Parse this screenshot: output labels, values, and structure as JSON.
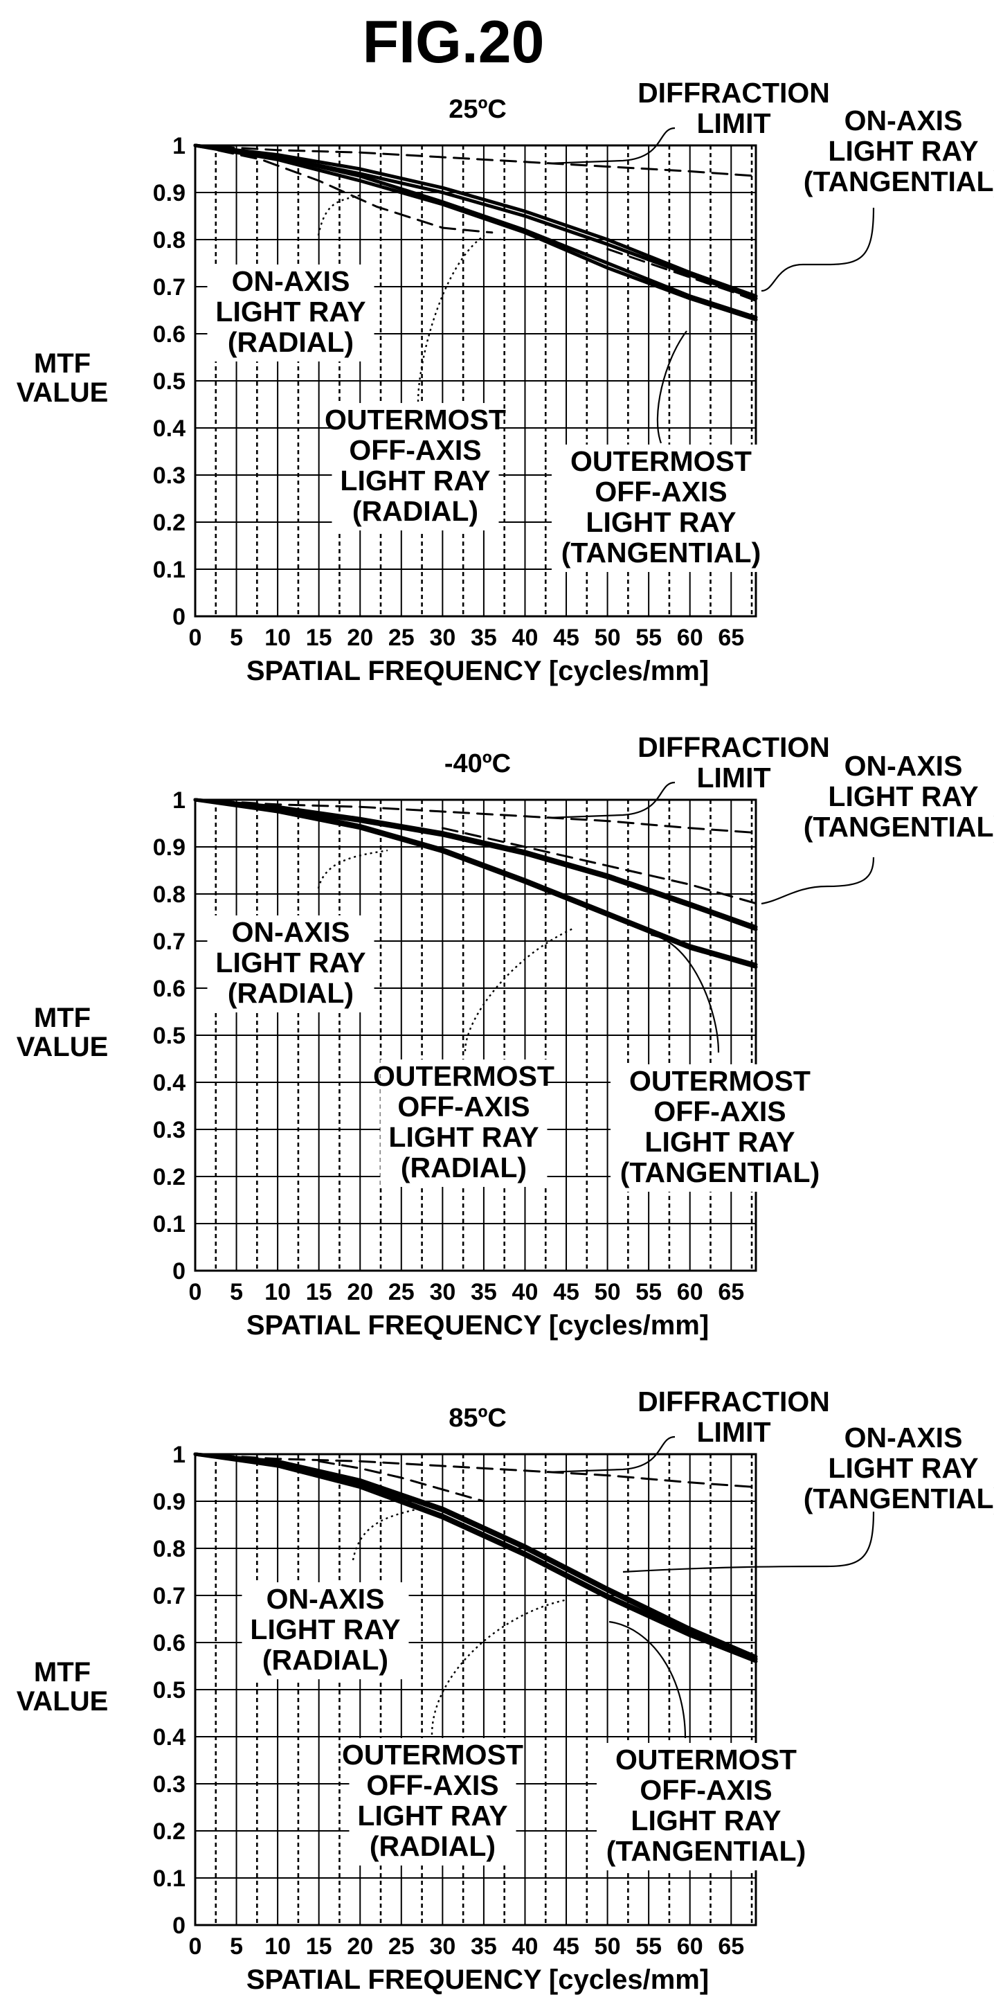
{
  "figure_title": "FIG.20",
  "chart_data": [
    {
      "type": "line",
      "title": "25ºC",
      "xlabel": "SPATIAL FREQUENCY [cycles/mm]",
      "ylabel": [
        "MTF",
        "VALUE"
      ],
      "xlim": [
        0,
        68
      ],
      "ylim": [
        0,
        1
      ],
      "x_ticks": [
        "0",
        "5",
        "10",
        "15",
        "20",
        "25",
        "30",
        "35",
        "40",
        "45",
        "50",
        "55",
        "60",
        "65"
      ],
      "y_ticks": [
        "0",
        "0.1",
        "0.2",
        "0.3",
        "0.4",
        "0.5",
        "0.6",
        "0.7",
        "0.8",
        "0.9",
        "1"
      ],
      "grid": true,
      "series": [
        {
          "name": "DIFFRACTION LIMIT",
          "style": "dashed",
          "x": [
            0,
            10,
            20,
            30,
            40,
            50,
            60,
            68
          ],
          "y": [
            1.0,
            0.99,
            0.985,
            0.975,
            0.965,
            0.955,
            0.945,
            0.935
          ]
        },
        {
          "name": "ON-AXIS LIGHT RAY (TANGENTIAL)",
          "style": "solid",
          "x": [
            0,
            10,
            20,
            30,
            40,
            50,
            60,
            68
          ],
          "y": [
            1.0,
            0.98,
            0.95,
            0.91,
            0.86,
            0.8,
            0.73,
            0.68
          ]
        },
        {
          "name": "ON-AXIS LIGHT RAY (RADIAL)",
          "style": "solid",
          "x": [
            0,
            10,
            20,
            30,
            40,
            50,
            60,
            68
          ],
          "y": [
            1.0,
            0.975,
            0.94,
            0.9,
            0.85,
            0.79,
            0.725,
            0.675
          ]
        },
        {
          "name": "OUTERMOST OFF-AXIS LIGHT RAY (TANGENTIAL)",
          "style": "solid",
          "x": [
            0,
            10,
            20,
            30,
            40,
            50,
            60,
            68
          ],
          "y": [
            1.0,
            0.975,
            0.935,
            0.88,
            0.82,
            0.75,
            0.68,
            0.635
          ]
        },
        {
          "name": "OUTERMOST OFF-AXIS LIGHT RAY (RADIAL)",
          "style": "solid",
          "x": [
            0,
            10,
            20,
            30,
            40,
            50,
            60,
            68
          ],
          "y": [
            1.0,
            0.97,
            0.925,
            0.875,
            0.815,
            0.74,
            0.675,
            0.63
          ]
        },
        {
          "name": "",
          "style": "dashed",
          "x": [
            0,
            8,
            15,
            22,
            30,
            36
          ],
          "y": [
            1.0,
            0.97,
            0.925,
            0.87,
            0.825,
            0.815
          ]
        },
        {
          "name": "",
          "style": "dashed",
          "x": [
            50,
            55,
            60,
            65,
            68
          ],
          "y": [
            0.78,
            0.75,
            0.72,
            0.69,
            0.67
          ]
        }
      ],
      "annotations": [
        {
          "lines": [
            "DIFFRACTION",
            "LIMIT"
          ]
        },
        {
          "lines": [
            "ON-AXIS",
            "LIGHT RAY",
            "(TANGENTIAL)"
          ]
        },
        {
          "lines": [
            "ON-AXIS",
            "LIGHT RAY",
            "(RADIAL)"
          ]
        },
        {
          "lines": [
            "OUTERMOST",
            "OFF-AXIS",
            "LIGHT RAY",
            "(RADIAL)"
          ]
        },
        {
          "lines": [
            "OUTERMOST",
            "OFF-AXIS",
            "LIGHT RAY",
            "(TANGENTIAL)"
          ]
        }
      ]
    },
    {
      "type": "line",
      "title": "-40ºC",
      "xlabel": "SPATIAL FREQUENCY [cycles/mm]",
      "ylabel": [
        "MTF",
        "VALUE"
      ],
      "xlim": [
        0,
        68
      ],
      "ylim": [
        0,
        1
      ],
      "x_ticks": [
        "0",
        "5",
        "10",
        "15",
        "20",
        "25",
        "30",
        "35",
        "40",
        "45",
        "50",
        "55",
        "60",
        "65"
      ],
      "y_ticks": [
        "0",
        "0.1",
        "0.2",
        "0.3",
        "0.4",
        "0.5",
        "0.6",
        "0.7",
        "0.8",
        "0.9",
        "1"
      ],
      "grid": true,
      "series": [
        {
          "name": "DIFFRACTION LIMIT",
          "style": "dashed",
          "x": [
            0,
            10,
            20,
            30,
            40,
            50,
            60,
            68
          ],
          "y": [
            1.0,
            0.99,
            0.985,
            0.975,
            0.965,
            0.955,
            0.94,
            0.93
          ]
        },
        {
          "name": "ON-AXIS LIGHT RAY (TANGENTIAL)",
          "style": "solid",
          "x": [
            0,
            10,
            20,
            30,
            40,
            50,
            60,
            68
          ],
          "y": [
            1.0,
            0.985,
            0.96,
            0.93,
            0.89,
            0.84,
            0.78,
            0.73
          ]
        },
        {
          "name": "ON-AXIS LIGHT RAY (RADIAL)",
          "style": "solid",
          "x": [
            0,
            10,
            20,
            30,
            40,
            50,
            60,
            68
          ],
          "y": [
            1.0,
            0.98,
            0.955,
            0.925,
            0.885,
            0.835,
            0.775,
            0.725
          ]
        },
        {
          "name": "OUTERMOST OFF-AXIS LIGHT RAY (TANGENTIAL)",
          "style": "solid",
          "x": [
            0,
            10,
            20,
            30,
            40,
            50,
            60,
            68
          ],
          "y": [
            1.0,
            0.98,
            0.945,
            0.895,
            0.83,
            0.76,
            0.69,
            0.65
          ]
        },
        {
          "name": "OUTERMOST OFF-AXIS LIGHT RAY (RADIAL)",
          "style": "solid",
          "x": [
            0,
            10,
            20,
            30,
            40,
            50,
            60,
            68
          ],
          "y": [
            1.0,
            0.975,
            0.94,
            0.89,
            0.825,
            0.755,
            0.685,
            0.645
          ]
        },
        {
          "name": "",
          "style": "dashed",
          "x": [
            30,
            40,
            50,
            60,
            68
          ],
          "y": [
            0.94,
            0.9,
            0.86,
            0.82,
            0.78
          ]
        }
      ],
      "annotations": [
        {
          "lines": [
            "DIFFRACTION",
            "LIMIT"
          ]
        },
        {
          "lines": [
            "ON-AXIS",
            "LIGHT RAY",
            "(TANGENTIAL)"
          ]
        },
        {
          "lines": [
            "ON-AXIS",
            "LIGHT RAY",
            "(RADIAL)"
          ]
        },
        {
          "lines": [
            "OUTERMOST",
            "OFF-AXIS",
            "LIGHT RAY",
            "(RADIAL)"
          ]
        },
        {
          "lines": [
            "OUTERMOST",
            "OFF-AXIS",
            "LIGHT RAY",
            "(TANGENTIAL)"
          ]
        }
      ]
    },
    {
      "type": "line",
      "title": "85ºC",
      "xlabel": "SPATIAL FREQUENCY [cycles/mm]",
      "ylabel": [
        "MTF",
        "VALUE"
      ],
      "xlim": [
        0,
        68
      ],
      "ylim": [
        0,
        1
      ],
      "x_ticks": [
        "0",
        "5",
        "10",
        "15",
        "20",
        "25",
        "30",
        "35",
        "40",
        "45",
        "50",
        "55",
        "60",
        "65"
      ],
      "y_ticks": [
        "0",
        "0.1",
        "0.2",
        "0.3",
        "0.4",
        "0.5",
        "0.6",
        "0.7",
        "0.8",
        "0.9",
        "1"
      ],
      "grid": true,
      "series": [
        {
          "name": "DIFFRACTION LIMIT",
          "style": "dashed",
          "x": [
            0,
            10,
            20,
            30,
            40,
            50,
            60,
            68
          ],
          "y": [
            1.0,
            0.99,
            0.985,
            0.975,
            0.965,
            0.955,
            0.94,
            0.93
          ]
        },
        {
          "name": "ON-AXIS LIGHT RAY (TANGENTIAL)",
          "style": "solid",
          "x": [
            0,
            10,
            20,
            30,
            40,
            50,
            60,
            68
          ],
          "y": [
            1.0,
            0.98,
            0.935,
            0.87,
            0.79,
            0.7,
            0.62,
            0.565
          ]
        },
        {
          "name": "ON-AXIS LIGHT RAY (RADIAL)",
          "style": "solid",
          "x": [
            0,
            10,
            20,
            30,
            40,
            50,
            60,
            68
          ],
          "y": [
            1.0,
            0.975,
            0.93,
            0.865,
            0.785,
            0.695,
            0.615,
            0.56
          ]
        },
        {
          "name": "OUTERMOST OFF-AXIS LIGHT RAY (TANGENTIAL)",
          "style": "solid",
          "x": [
            0,
            10,
            20,
            30,
            40,
            50,
            60,
            68
          ],
          "y": [
            1.0,
            0.985,
            0.945,
            0.885,
            0.805,
            0.715,
            0.63,
            0.57
          ]
        },
        {
          "name": "OUTERMOST OFF-AXIS LIGHT RAY (RADIAL)",
          "style": "solid",
          "x": [
            0,
            10,
            20,
            30,
            40,
            50,
            60,
            68
          ],
          "y": [
            1.0,
            0.98,
            0.94,
            0.88,
            0.8,
            0.71,
            0.625,
            0.565
          ]
        },
        {
          "name": "",
          "style": "dashed",
          "x": [
            15,
            20,
            25,
            30,
            35
          ],
          "y": [
            0.985,
            0.97,
            0.95,
            0.925,
            0.9
          ]
        }
      ],
      "annotations": [
        {
          "lines": [
            "DIFFRACTION",
            "LIMIT"
          ]
        },
        {
          "lines": [
            "ON-AXIS",
            "LIGHT RAY",
            "(TANGENTIAL)"
          ]
        },
        {
          "lines": [
            "ON-AXIS",
            "LIGHT RAY",
            "(RADIAL)"
          ]
        },
        {
          "lines": [
            "OUTERMOST",
            "OFF-AXIS",
            "LIGHT RAY",
            "(RADIAL)"
          ]
        },
        {
          "lines": [
            "OUTERMOST",
            "OFF-AXIS",
            "LIGHT RAY",
            "(TANGENTIAL)"
          ]
        }
      ]
    }
  ]
}
